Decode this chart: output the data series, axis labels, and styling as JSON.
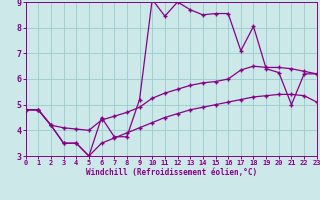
{
  "xlabel": "Windchill (Refroidissement éolien,°C)",
  "xlim": [
    0,
    23
  ],
  "ylim": [
    3,
    9
  ],
  "yticks": [
    3,
    4,
    5,
    6,
    7,
    8,
    9
  ],
  "xticks": [
    0,
    1,
    2,
    3,
    4,
    5,
    6,
    7,
    8,
    9,
    10,
    11,
    12,
    13,
    14,
    15,
    16,
    17,
    18,
    19,
    20,
    21,
    22,
    23
  ],
  "bg_color": "#cce8e8",
  "line_color": "#880088",
  "grid_color": "#99cccc",
  "line1_x": [
    0,
    1,
    2,
    3,
    4,
    5,
    6,
    7,
    8,
    9,
    10,
    11,
    12,
    13,
    14,
    15,
    16,
    17,
    18,
    19,
    20,
    21,
    22,
    23
  ],
  "line1_y": [
    4.8,
    4.8,
    4.2,
    3.5,
    3.5,
    3.0,
    4.5,
    3.75,
    3.75,
    5.2,
    9.1,
    8.45,
    9.0,
    8.7,
    8.5,
    8.55,
    8.55,
    7.1,
    8.05,
    6.4,
    6.25,
    5.0,
    6.2,
    6.2
  ],
  "line2_x": [
    0,
    1,
    2,
    3,
    4,
    5,
    6,
    7,
    8,
    9,
    10,
    11,
    12,
    13,
    14,
    15,
    16,
    17,
    18,
    19,
    20,
    21,
    22,
    23
  ],
  "line2_y": [
    4.8,
    4.8,
    4.2,
    4.1,
    4.05,
    4.0,
    4.4,
    4.55,
    4.7,
    4.9,
    5.25,
    5.45,
    5.6,
    5.75,
    5.85,
    5.9,
    6.0,
    6.35,
    6.5,
    6.45,
    6.45,
    6.4,
    6.3,
    6.2
  ],
  "line3_x": [
    0,
    1,
    2,
    3,
    4,
    5,
    6,
    7,
    8,
    9,
    10,
    11,
    12,
    13,
    14,
    15,
    16,
    17,
    18,
    19,
    20,
    21,
    22,
    23
  ],
  "line3_y": [
    4.8,
    4.8,
    4.2,
    3.5,
    3.5,
    3.0,
    3.5,
    3.7,
    3.9,
    4.1,
    4.3,
    4.5,
    4.65,
    4.8,
    4.9,
    5.0,
    5.1,
    5.2,
    5.3,
    5.35,
    5.4,
    5.4,
    5.35,
    5.1
  ]
}
